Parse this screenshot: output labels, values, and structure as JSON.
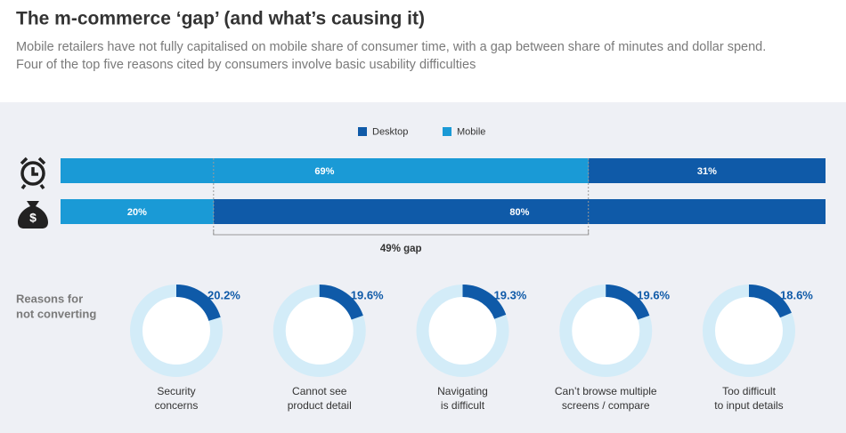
{
  "title": "The m-commerce ‘gap’ (and what’s causing it)",
  "subtitle": [
    "Mobile retailers have not fully capitalised on mobile share of consumer time, with a gap between share of minutes and dollar spend.",
    "Four of the top five reasons cited by consumers involve basic usability difficulties"
  ],
  "chart_data": [
    {
      "type": "stacked-bar",
      "orientation": "horizontal",
      "categories": [
        null,
        null
      ],
      "series": [
        {
          "name": "Desktop",
          "color": "#0f5aa8",
          "values": [
            31,
            80
          ],
          "value_labels": [
            "31%",
            "80%"
          ]
        },
        {
          "name": "Mobile",
          "color": "#1a9ad6",
          "values": [
            69,
            20
          ],
          "value_labels": [
            "69%",
            "20%"
          ]
        }
      ],
      "xlim": [
        0,
        100
      ],
      "annotation": "49% gap"
    },
    {
      "type": "donut",
      "title": [
        "Reasons for",
        "not converting"
      ],
      "categories": [
        [
          "Security",
          "concerns"
        ],
        [
          "Cannot see",
          "product detail"
        ],
        [
          "Navigating",
          "is difficult"
        ],
        [
          "Can’t browse multiple",
          "screens / compare"
        ],
        [
          "Too difficult",
          "to input details"
        ]
      ],
      "values": [
        20.2,
        19.6,
        19.3,
        19.6,
        18.6
      ],
      "value_labels": [
        "20.2%",
        "19.6%",
        "19.3%",
        "19.6%",
        "18.6%"
      ],
      "ylim": [
        0,
        100
      ],
      "color": "#0f5aa8",
      "track_color": "#d3ecf8"
    }
  ]
}
